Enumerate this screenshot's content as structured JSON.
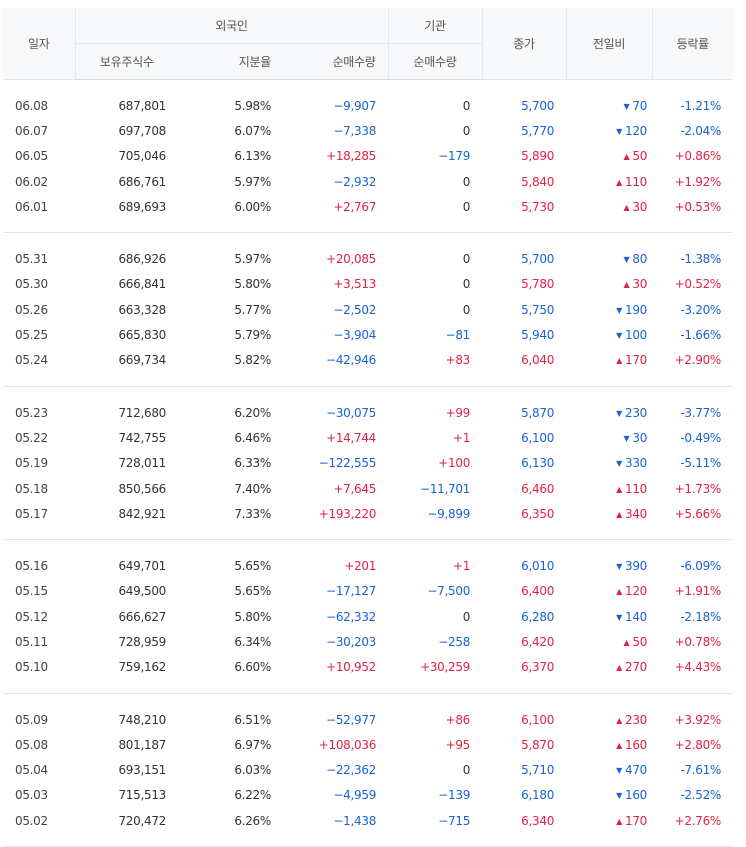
{
  "header": {
    "date": "일자",
    "foreign": "외국인",
    "institution": "기관",
    "close": "종가",
    "change": "전일비",
    "rate": "등락률",
    "holdings": "보유주식수",
    "share": "지분율",
    "foreign_net": "순매수량",
    "inst_net": "순매수량"
  },
  "groups": [
    {
      "rows": [
        {
          "date": "06.08",
          "holdings": "687,801",
          "share": "5.98%",
          "foreign": "−9,907",
          "inst": "0",
          "close": "5,700",
          "change": "70",
          "dir": "down",
          "rate": "-1.21%"
        },
        {
          "date": "06.07",
          "holdings": "697,708",
          "share": "6.07%",
          "foreign": "−7,338",
          "inst": "0",
          "close": "5,770",
          "change": "120",
          "dir": "down",
          "rate": "-2.04%"
        },
        {
          "date": "06.05",
          "holdings": "705,046",
          "share": "6.13%",
          "foreign": "+18,285",
          "inst": "−179",
          "close": "5,890",
          "change": "50",
          "dir": "up",
          "rate": "+0.86%"
        },
        {
          "date": "06.02",
          "holdings": "686,761",
          "share": "5.97%",
          "foreign": "−2,932",
          "inst": "0",
          "close": "5,840",
          "change": "110",
          "dir": "up",
          "rate": "+1.92%"
        },
        {
          "date": "06.01",
          "holdings": "689,693",
          "share": "6.00%",
          "foreign": "+2,767",
          "inst": "0",
          "close": "5,730",
          "change": "30",
          "dir": "up",
          "rate": "+0.53%"
        }
      ]
    },
    {
      "rows": [
        {
          "date": "05.31",
          "holdings": "686,926",
          "share": "5.97%",
          "foreign": "+20,085",
          "inst": "0",
          "close": "5,700",
          "change": "80",
          "dir": "down",
          "rate": "-1.38%"
        },
        {
          "date": "05.30",
          "holdings": "666,841",
          "share": "5.80%",
          "foreign": "+3,513",
          "inst": "0",
          "close": "5,780",
          "change": "30",
          "dir": "up",
          "rate": "+0.52%"
        },
        {
          "date": "05.26",
          "holdings": "663,328",
          "share": "5.77%",
          "foreign": "−2,502",
          "inst": "0",
          "close": "5,750",
          "change": "190",
          "dir": "down",
          "rate": "-3.20%"
        },
        {
          "date": "05.25",
          "holdings": "665,830",
          "share": "5.79%",
          "foreign": "−3,904",
          "inst": "−81",
          "close": "5,940",
          "change": "100",
          "dir": "down",
          "rate": "-1.66%"
        },
        {
          "date": "05.24",
          "holdings": "669,734",
          "share": "5.82%",
          "foreign": "−42,946",
          "inst": "+83",
          "close": "6,040",
          "change": "170",
          "dir": "up",
          "rate": "+2.90%"
        }
      ]
    },
    {
      "rows": [
        {
          "date": "05.23",
          "holdings": "712,680",
          "share": "6.20%",
          "foreign": "−30,075",
          "inst": "+99",
          "close": "5,870",
          "change": "230",
          "dir": "down",
          "rate": "-3.77%"
        },
        {
          "date": "05.22",
          "holdings": "742,755",
          "share": "6.46%",
          "foreign": "+14,744",
          "inst": "+1",
          "close": "6,100",
          "change": "30",
          "dir": "down",
          "rate": "-0.49%"
        },
        {
          "date": "05.19",
          "holdings": "728,011",
          "share": "6.33%",
          "foreign": "−122,555",
          "inst": "+100",
          "close": "6,130",
          "change": "330",
          "dir": "down",
          "rate": "-5.11%"
        },
        {
          "date": "05.18",
          "holdings": "850,566",
          "share": "7.40%",
          "foreign": "+7,645",
          "inst": "−11,701",
          "close": "6,460",
          "change": "110",
          "dir": "up",
          "rate": "+1.73%"
        },
        {
          "date": "05.17",
          "holdings": "842,921",
          "share": "7.33%",
          "foreign": "+193,220",
          "inst": "−9,899",
          "close": "6,350",
          "change": "340",
          "dir": "up",
          "rate": "+5.66%"
        }
      ]
    },
    {
      "rows": [
        {
          "date": "05.16",
          "holdings": "649,701",
          "share": "5.65%",
          "foreign": "+201",
          "inst": "+1",
          "close": "6,010",
          "change": "390",
          "dir": "down",
          "rate": "-6.09%"
        },
        {
          "date": "05.15",
          "holdings": "649,500",
          "share": "5.65%",
          "foreign": "−17,127",
          "inst": "−7,500",
          "close": "6,400",
          "change": "120",
          "dir": "up",
          "rate": "+1.91%"
        },
        {
          "date": "05.12",
          "holdings": "666,627",
          "share": "5.80%",
          "foreign": "−62,332",
          "inst": "0",
          "close": "6,280",
          "change": "140",
          "dir": "down",
          "rate": "-2.18%"
        },
        {
          "date": "05.11",
          "holdings": "728,959",
          "share": "6.34%",
          "foreign": "−30,203",
          "inst": "−258",
          "close": "6,420",
          "change": "50",
          "dir": "up",
          "rate": "+0.78%"
        },
        {
          "date": "05.10",
          "holdings": "759,162",
          "share": "6.60%",
          "foreign": "+10,952",
          "inst": "+30,259",
          "close": "6,370",
          "change": "270",
          "dir": "up",
          "rate": "+4.43%"
        }
      ]
    },
    {
      "rows": [
        {
          "date": "05.09",
          "holdings": "748,210",
          "share": "6.51%",
          "foreign": "−52,977",
          "inst": "+86",
          "close": "6,100",
          "change": "230",
          "dir": "up",
          "rate": "+3.92%"
        },
        {
          "date": "05.08",
          "holdings": "801,187",
          "share": "6.97%",
          "foreign": "+108,036",
          "inst": "+95",
          "close": "5,870",
          "change": "160",
          "dir": "up",
          "rate": "+2.80%"
        },
        {
          "date": "05.04",
          "holdings": "693,151",
          "share": "6.03%",
          "foreign": "−22,362",
          "inst": "0",
          "close": "5,710",
          "change": "470",
          "dir": "down",
          "rate": "-7.61%"
        },
        {
          "date": "05.03",
          "holdings": "715,513",
          "share": "6.22%",
          "foreign": "−4,959",
          "inst": "−139",
          "close": "6,180",
          "change": "160",
          "dir": "down",
          "rate": "-2.52%"
        },
        {
          "date": "05.02",
          "holdings": "720,472",
          "share": "6.26%",
          "foreign": "−1,438",
          "inst": "−715",
          "close": "6,340",
          "change": "170",
          "dir": "up",
          "rate": "+2.76%"
        }
      ]
    }
  ],
  "colors": {
    "up": "#e12343",
    "down": "#1763d4"
  },
  "icons": {
    "up": "triangle-up-icon",
    "down": "triangle-down-icon"
  }
}
